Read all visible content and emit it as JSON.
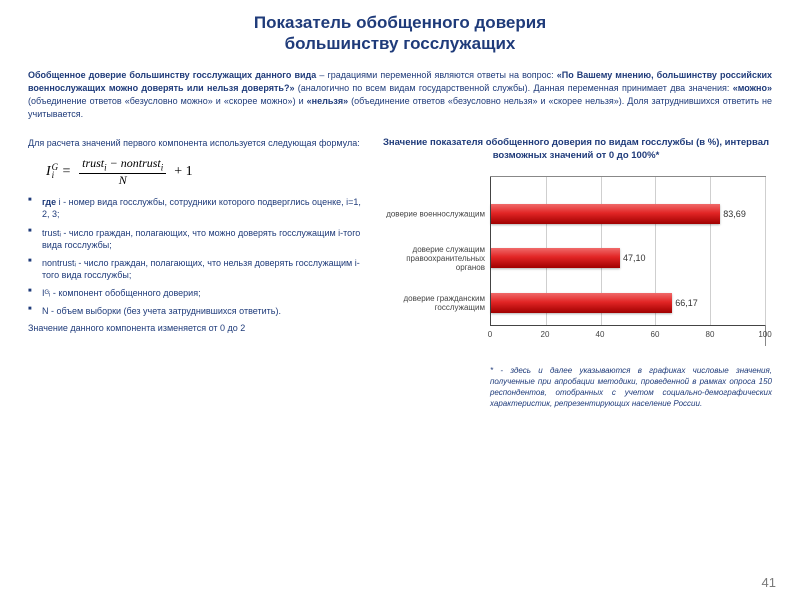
{
  "title_l1": "Показатель обобщенного доверия",
  "title_l2": "большинству госслужащих",
  "intro": "Обобщенное доверие большинству госслужащих данного вида – градациями переменной являются ответы на вопрос: «По Вашему мнению, большинству российских военнослужащих можно доверять или нельзя доверять?» (аналогично по всем видам государственной службы). Данная переменная принимает два значения: «можно» (объединение ответов «безусловно можно» и «скорее можно») и «нельзя» (объединение ответов «безусловно нельзя» и «скорее нельзя»). Доля затруднившихся ответить не учитывается.",
  "formula_lead": "Для расчета значений первого компонента используется следующая формула:",
  "defs": {
    "i": "i - номер вида госслужбы, сотрудники которого подверглись оценке, i=1, 2, 3;",
    "trust": "trustᵢ - число граждан, полагающих, что можно доверять госслужащим i-того вида госслужбы;",
    "nontrust": "nontrustᵢ - число граждан, полагающих, что нельзя доверять госслужащим i-того вида госслужбы;",
    "ig": "Iᴳᵢ - компонент обобщенного доверия;",
    "n": "N - объем выборки (без учета затруднившихся ответить).",
    "range": "Значение данного компонента изменяется от 0 до 2"
  },
  "chart": {
    "title": "Значение показателя обобщенного доверия по видам госслужбы (в %), интервал возможных значений от 0 до 100%*",
    "type": "bar-horizontal",
    "xlim": [
      0,
      100
    ],
    "xtick_step": 20,
    "xticks": [
      "0",
      "20",
      "40",
      "60",
      "80",
      "100"
    ],
    "grid_color": "#cfcfcf",
    "axis_color": "#444444",
    "background": "#ffffff",
    "bar_gradient": [
      "#f06a6a",
      "#e22525",
      "#a00000"
    ],
    "label_fontsize": 8,
    "value_fontsize": 9,
    "categories": [
      {
        "label": "доверие военнослужащим",
        "value": 83.69,
        "value_str": "83,69"
      },
      {
        "label": "доверие служащим правоохранительных органов",
        "value": 47.1,
        "value_str": "47,10"
      },
      {
        "label": "доверие гражданским госслужащим",
        "value": 66.17,
        "value_str": "66,17"
      }
    ]
  },
  "footnote": "* - здесь и далее указываются в графиках числовые значения, полученные при апробации методики, проведенной в рамках опроса 150 респондентов, отобранных с учетом социально-демографических характеристик, репрезентирующих население России.",
  "page_number": "41"
}
